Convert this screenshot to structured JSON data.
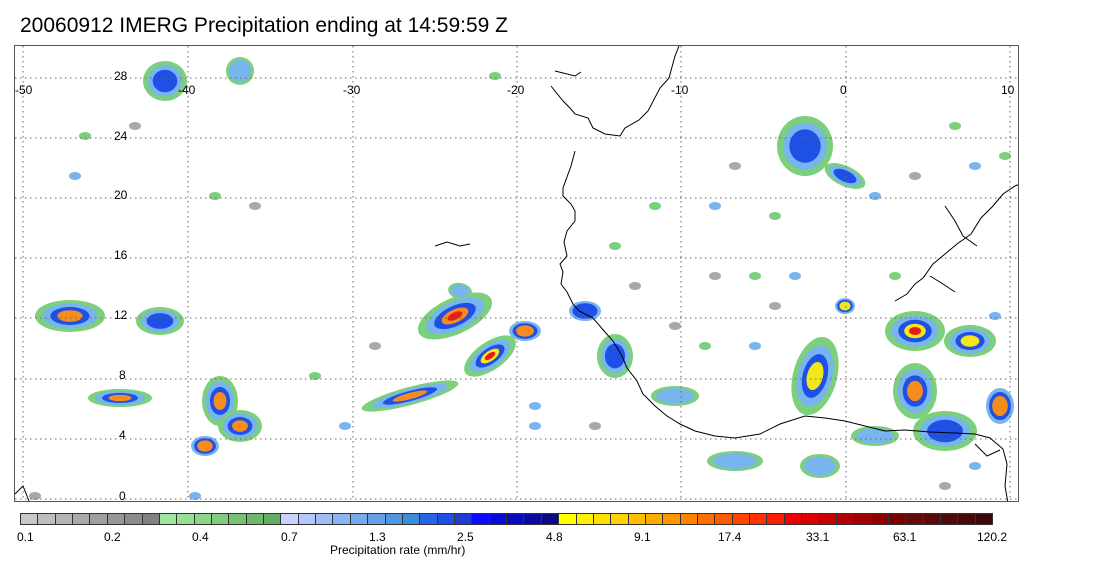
{
  "title": "20060912 IMERG Precipitation ending at 14:59:59 Z",
  "map": {
    "lon_labels": [
      "-50",
      "-40",
      "-30",
      "-20",
      "-10",
      "0",
      "10"
    ],
    "lat_labels": [
      "28",
      "24",
      "20",
      "16",
      "12",
      "8",
      "4",
      "0"
    ],
    "precip_colors": {
      "light_gray": "#a8a8a8",
      "green": "#7ccf7c",
      "light_blue": "#78b4ee",
      "blue": "#1e50e6",
      "dark_blue": "#0a0aa0",
      "yellow": "#f5e617",
      "orange": "#f58c1e",
      "red": "#e61e14",
      "dark_red": "#9b0a0a"
    },
    "coastline_color": "#000000",
    "grid": "dotted"
  },
  "colorbar": {
    "label": "Precipitation rate (mm/hr)",
    "ticks": [
      "0.1",
      "0.2",
      "0.4",
      "0.7",
      "1.3",
      "2.5",
      "4.8",
      "9.1",
      "17.4",
      "33.1",
      "63.1",
      "120.2"
    ],
    "colors": [
      "#c8c8c8",
      "#bebebe",
      "#b4b4b4",
      "#aaaaaa",
      "#a0a0a0",
      "#969696",
      "#8c8c8c",
      "#828282",
      "#a0e6a0",
      "#96e096",
      "#8cd68c",
      "#82cc82",
      "#78c278",
      "#6eb86e",
      "#64ae64",
      "#c8d2ff",
      "#b4c8ff",
      "#a0bef5",
      "#8cb4f0",
      "#78aaeb",
      "#64a0e6",
      "#5096e1",
      "#3c8cdc",
      "#2864e6",
      "#1e50e6",
      "#1e3cd2",
      "#0a0aff",
      "#0a0adc",
      "#0a0abe",
      "#0a0aa0",
      "#0a0a82",
      "#ffff00",
      "#fff000",
      "#ffe100",
      "#ffd200",
      "#ffbe00",
      "#ffaa00",
      "#ff9600",
      "#ff8200",
      "#ff6e00",
      "#ff5a00",
      "#ff4600",
      "#ff3200",
      "#ff1e00",
      "#f00000",
      "#dc0000",
      "#c80000",
      "#b40000",
      "#a00000",
      "#8c0000",
      "#780000",
      "#640a0a",
      "#5a0a0a",
      "#500a0a",
      "#460a0a",
      "#3c0a0a"
    ]
  }
}
